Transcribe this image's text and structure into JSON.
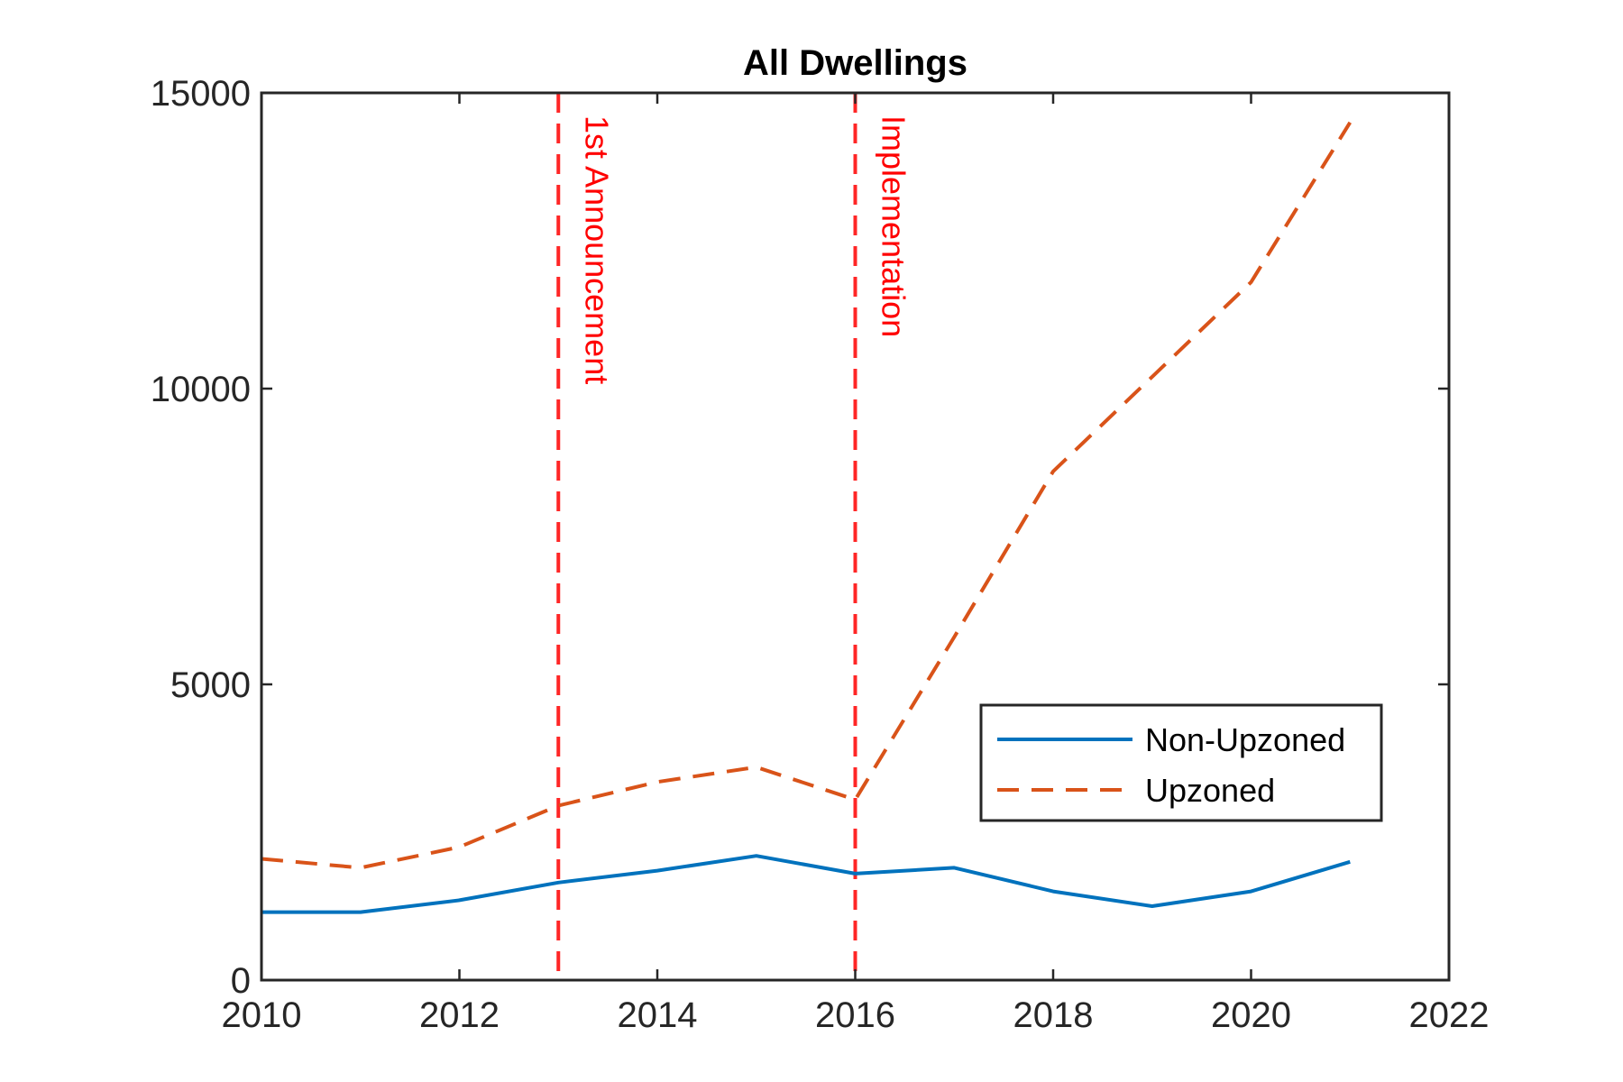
{
  "chart_data": {
    "type": "line",
    "title": "All Dwellings",
    "xlabel": "",
    "ylabel": "",
    "xlim": [
      2010,
      2022
    ],
    "ylim": [
      0,
      15000
    ],
    "xticks": [
      2010,
      2012,
      2014,
      2016,
      2018,
      2020,
      2022
    ],
    "yticks": [
      0,
      5000,
      10000,
      15000
    ],
    "x": [
      2010,
      2011,
      2012,
      2013,
      2014,
      2015,
      2016,
      2017,
      2018,
      2019,
      2020,
      2021
    ],
    "series": [
      {
        "name": "Non-Upzoned",
        "color": "#0072BD",
        "style": "solid",
        "values": [
          1150,
          1150,
          1350,
          1650,
          1850,
          2100,
          1800,
          1900,
          1500,
          1250,
          1500,
          2000
        ]
      },
      {
        "name": "Upzoned",
        "color": "#D95319",
        "style": "dashed",
        "values": [
          2050,
          1900,
          2250,
          2950,
          3350,
          3600,
          3050,
          5800,
          8600,
          10200,
          11800,
          14500
        ]
      }
    ],
    "events": [
      {
        "x": 2013,
        "label": "1st Announcement",
        "color": "#FF0000"
      },
      {
        "x": 2016,
        "label": "Implementation",
        "color": "#FF0000"
      }
    ],
    "legend": {
      "placement": "lower-right"
    },
    "grid": false
  }
}
